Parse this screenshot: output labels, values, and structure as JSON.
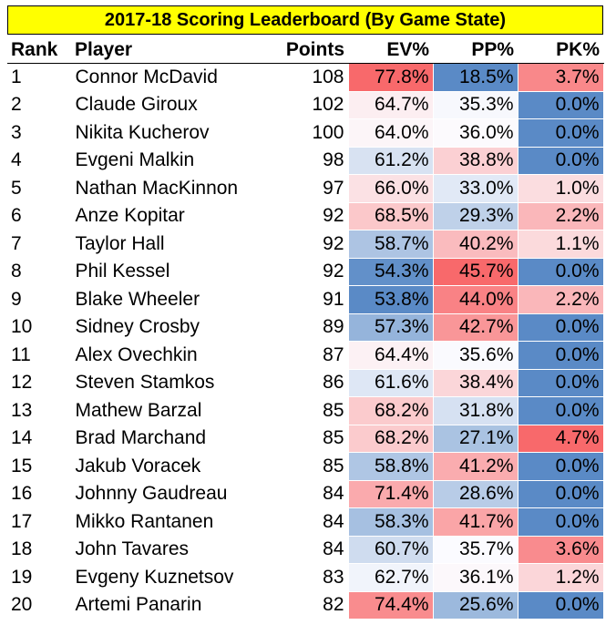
{
  "title": "2017-18 Scoring Leaderboard (By Game State)",
  "table": {
    "header": [
      "Rank",
      "Player",
      "Points",
      "EV%",
      "PP%",
      "PK%"
    ],
    "rows": [
      [
        "1",
        "Connor McDavid",
        "108",
        "77.8%",
        "18.5%",
        "3.7%"
      ],
      [
        "2",
        "Claude Giroux",
        "102",
        "64.7%",
        "35.3%",
        "0.0%"
      ],
      [
        "3",
        "Nikita Kucherov",
        "100",
        "64.0%",
        "36.0%",
        "0.0%"
      ],
      [
        "4",
        "Evgeni Malkin",
        "98",
        "61.2%",
        "38.8%",
        "0.0%"
      ],
      [
        "5",
        "Nathan MacKinnon",
        "97",
        "66.0%",
        "33.0%",
        "1.0%"
      ],
      [
        "6",
        "Anze Kopitar",
        "92",
        "68.5%",
        "29.3%",
        "2.2%"
      ],
      [
        "7",
        "Taylor Hall",
        "92",
        "58.7%",
        "40.2%",
        "1.1%"
      ],
      [
        "8",
        "Phil Kessel",
        "92",
        "54.3%",
        "45.7%",
        "0.0%"
      ],
      [
        "9",
        "Blake Wheeler",
        "91",
        "53.8%",
        "44.0%",
        "2.2%"
      ],
      [
        "10",
        "Sidney Crosby",
        "89",
        "57.3%",
        "42.7%",
        "0.0%"
      ],
      [
        "11",
        "Alex Ovechkin",
        "87",
        "64.4%",
        "35.6%",
        "0.0%"
      ],
      [
        "12",
        "Steven Stamkos",
        "86",
        "61.6%",
        "38.4%",
        "0.0%"
      ],
      [
        "13",
        "Mathew Barzal",
        "85",
        "68.2%",
        "31.8%",
        "0.0%"
      ],
      [
        "14",
        "Brad Marchand",
        "85",
        "68.2%",
        "27.1%",
        "4.7%"
      ],
      [
        "15",
        "Jakub Voracek",
        "85",
        "58.8%",
        "41.2%",
        "0.0%"
      ],
      [
        "16",
        "Johnny Gaudreau",
        "84",
        "71.4%",
        "28.6%",
        "0.0%"
      ],
      [
        "17",
        "Mikko Rantanen",
        "84",
        "58.3%",
        "41.7%",
        "0.0%"
      ],
      [
        "18",
        "John Tavares",
        "84",
        "60.7%",
        "35.7%",
        "3.6%"
      ],
      [
        "19",
        "Evgeny Kuznetsov",
        "83",
        "62.7%",
        "36.1%",
        "1.2%"
      ],
      [
        "20",
        "Artemi Panarin",
        "82",
        "74.4%",
        "25.6%",
        "0.0%"
      ]
    ]
  }
}
